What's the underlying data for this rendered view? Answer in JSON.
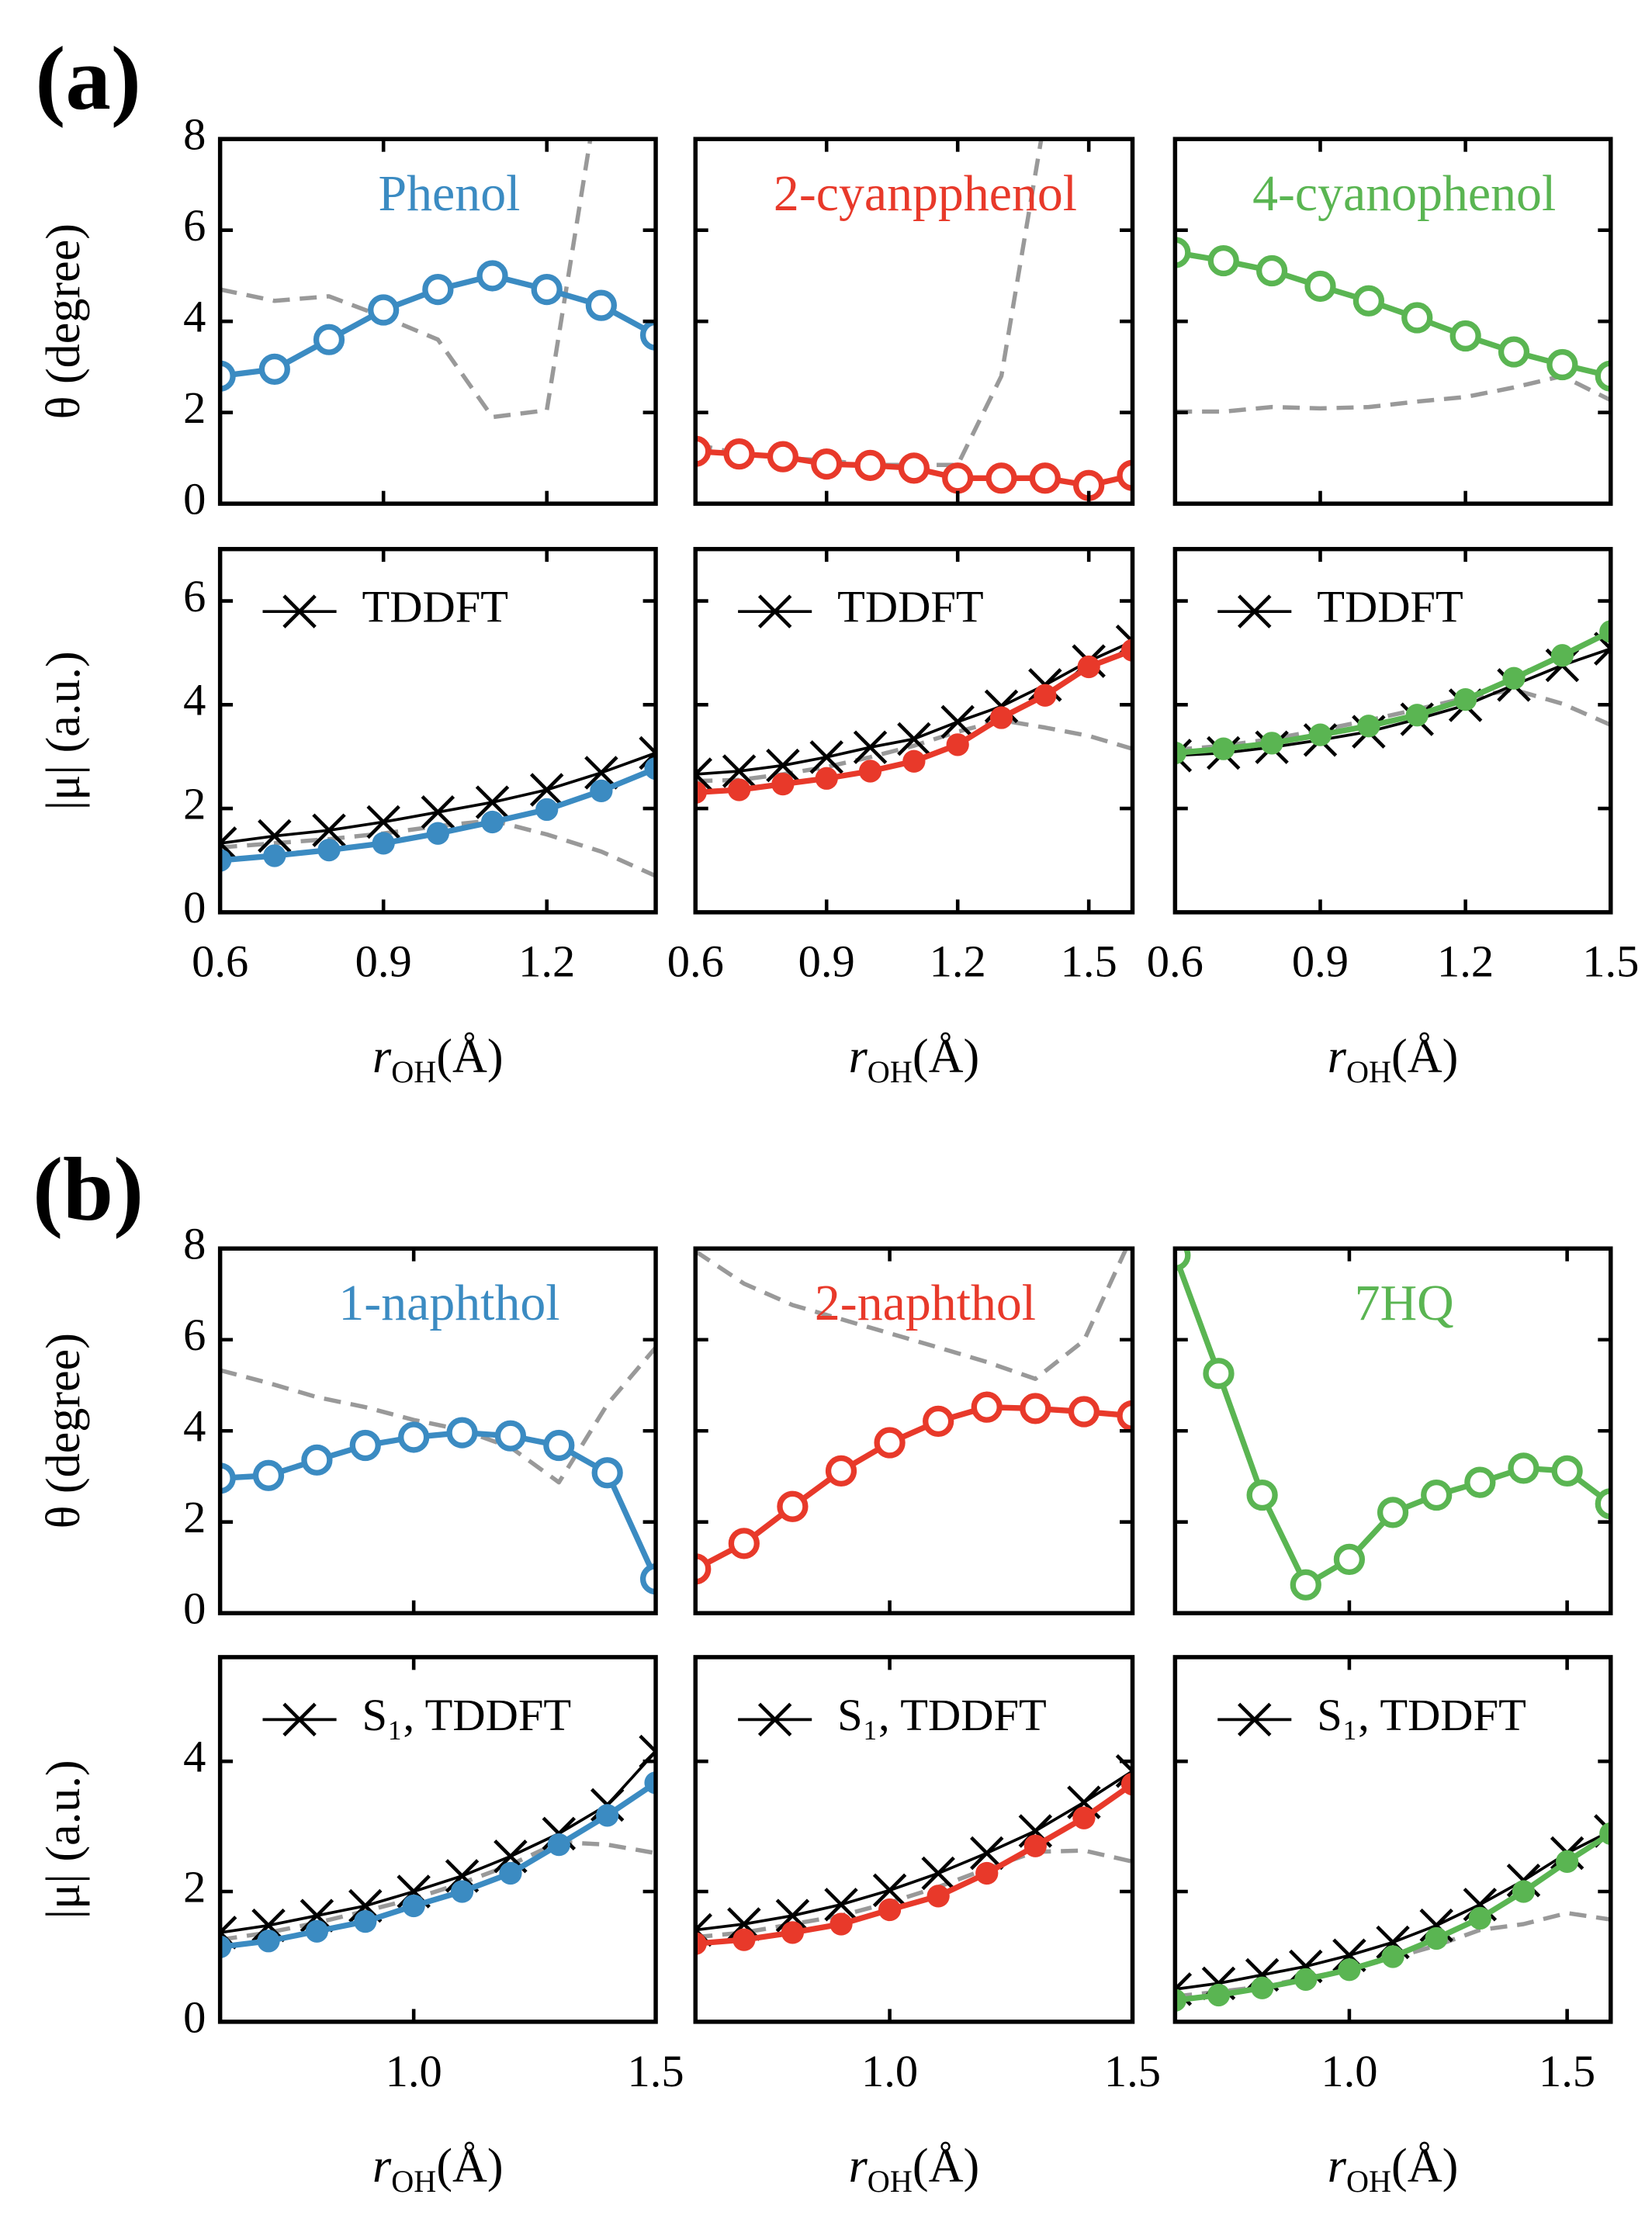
{
  "figure_labels": [
    "(a)",
    "(b)"
  ],
  "chart_data": [
    {
      "type": "line",
      "title": "Phenol",
      "ylabel": "θ (degree)",
      "x": [
        0.6,
        0.7,
        0.8,
        0.9,
        1.0,
        1.1,
        1.2,
        1.3,
        1.4
      ],
      "xlim": [
        0.6,
        1.4
      ],
      "xticks": [
        0.6,
        0.9,
        1.2
      ],
      "ylim": [
        0,
        8
      ],
      "yticks": [
        0,
        2,
        4,
        6,
        8
      ],
      "series": [
        {
          "color": "#999999",
          "linestyle": "dashed",
          "values": [
            4.7,
            4.45,
            4.55,
            4.1,
            3.6,
            1.9,
            2.05,
            9.5,
            null
          ]
        },
        {
          "color": "#3b8bc2",
          "marker": "open",
          "values": [
            2.8,
            2.95,
            3.6,
            4.25,
            4.7,
            5.0,
            4.7,
            4.35,
            3.7
          ]
        }
      ]
    },
    {
      "type": "line",
      "title": "2-cyanpphenol",
      "x": [
        0.6,
        0.7,
        0.8,
        0.9,
        1.0,
        1.1,
        1.2,
        1.3,
        1.4,
        1.5,
        1.6
      ],
      "xlim": [
        0.6,
        1.6
      ],
      "xticks": [
        0.6,
        0.9,
        1.2,
        1.5
      ],
      "ylim": [
        0,
        8
      ],
      "yticks": [
        0,
        2,
        4,
        6,
        8
      ],
      "series": [
        {
          "color": "#999999",
          "linestyle": "dashed",
          "values": [
            1.3,
            1.1,
            1.0,
            0.95,
            0.85,
            0.85,
            0.85,
            2.8,
            8.5,
            null,
            null
          ]
        },
        {
          "color": "#e8392a",
          "marker": "open",
          "values": [
            1.15,
            1.09,
            1.03,
            0.87,
            0.84,
            0.78,
            0.56,
            0.56,
            0.56,
            0.4,
            0.62
          ]
        }
      ]
    },
    {
      "type": "line",
      "title": "4-cyanophenol",
      "x": [
        0.6,
        0.7,
        0.8,
        0.9,
        1.0,
        1.1,
        1.2,
        1.3,
        1.4,
        1.5
      ],
      "xlim": [
        0.6,
        1.5
      ],
      "xticks": [
        0.6,
        0.9,
        1.2,
        1.5
      ],
      "ylim": [
        0,
        8
      ],
      "yticks": [
        0,
        2,
        4,
        6,
        8
      ],
      "series": [
        {
          "color": "#999999",
          "linestyle": "dashed",
          "values": [
            2.02,
            2.02,
            2.12,
            2.09,
            2.12,
            2.24,
            2.34,
            2.55,
            2.8,
            2.27
          ]
        },
        {
          "color": "#5ab552",
          "marker": "open",
          "values": [
            5.51,
            5.33,
            5.11,
            4.77,
            4.45,
            4.08,
            3.68,
            3.33,
            3.05,
            2.8
          ]
        }
      ]
    },
    {
      "type": "line",
      "ylabel": "|μ| (a.u.)",
      "xlabel": {
        "symbol": "r",
        "sub": "OH",
        "unit": "(Å)"
      },
      "x": [
        0.6,
        0.7,
        0.8,
        0.9,
        1.0,
        1.1,
        1.2,
        1.3,
        1.4
      ],
      "xlim": [
        0.6,
        1.4
      ],
      "xticks": [
        0.6,
        0.9,
        1.2
      ],
      "ylim": [
        0,
        7
      ],
      "yticks": [
        0,
        2,
        4,
        6
      ],
      "series": [
        {
          "color": "#999999",
          "linestyle": "dashed",
          "values": [
            1.25,
            1.33,
            1.41,
            1.52,
            1.66,
            1.77,
            1.5,
            1.17,
            0.7
          ]
        },
        {
          "name": "TDDFT",
          "color": "#000000",
          "marker": "x",
          "values": [
            1.33,
            1.47,
            1.58,
            1.74,
            1.93,
            2.12,
            2.36,
            2.69,
            3.07
          ]
        },
        {
          "color": "#3b8bc2",
          "marker": "filled",
          "values": [
            1.0,
            1.09,
            1.2,
            1.33,
            1.52,
            1.74,
            1.98,
            2.34,
            2.77
          ]
        }
      ]
    },
    {
      "type": "line",
      "xlabel": {
        "symbol": "r",
        "sub": "OH",
        "unit": "(Å)"
      },
      "x": [
        0.6,
        0.7,
        0.8,
        0.9,
        1.0,
        1.1,
        1.2,
        1.3,
        1.4,
        1.5,
        1.6
      ],
      "xlim": [
        0.6,
        1.6
      ],
      "xticks": [
        0.6,
        0.9,
        1.2,
        1.5
      ],
      "ylim": [
        0,
        7
      ],
      "yticks": [
        0,
        2,
        4,
        6
      ],
      "series": [
        {
          "color": "#999999",
          "linestyle": "dashed",
          "values": [
            2.53,
            2.55,
            2.66,
            2.8,
            2.99,
            3.21,
            3.48,
            3.7,
            3.56,
            3.4,
            3.15
          ]
        },
        {
          "name": "TDDFT",
          "color": "#000000",
          "marker": "x",
          "values": [
            2.66,
            2.72,
            2.83,
            2.99,
            3.18,
            3.34,
            3.67,
            3.97,
            4.38,
            4.84,
            5.22
          ]
        },
        {
          "color": "#e8392a",
          "marker": "filled",
          "values": [
            2.31,
            2.36,
            2.47,
            2.58,
            2.72,
            2.91,
            3.23,
            3.75,
            4.18,
            4.73,
            5.05
          ]
        }
      ]
    },
    {
      "type": "line",
      "xlabel": {
        "symbol": "r",
        "sub": "OH",
        "unit": "(Å)"
      },
      "x": [
        0.6,
        0.7,
        0.8,
        0.9,
        1.0,
        1.1,
        1.2,
        1.3,
        1.4,
        1.5
      ],
      "xlim": [
        0.6,
        1.5
      ],
      "xticks": [
        0.6,
        0.9,
        1.2,
        1.5
      ],
      "ylim": [
        0,
        7
      ],
      "yticks": [
        0,
        2,
        4,
        6
      ],
      "series": [
        {
          "color": "#999999",
          "linestyle": "dashed",
          "values": [
            3.13,
            3.21,
            3.34,
            3.51,
            3.7,
            3.91,
            4.13,
            4.29,
            4.02,
            3.61
          ]
        },
        {
          "name": "TDDFT",
          "color": "#000000",
          "marker": "x",
          "values": [
            3.02,
            3.07,
            3.18,
            3.32,
            3.48,
            3.72,
            3.99,
            4.38,
            4.76,
            5.08
          ]
        },
        {
          "color": "#5ab552",
          "marker": "filled",
          "values": [
            3.07,
            3.15,
            3.26,
            3.42,
            3.59,
            3.8,
            4.1,
            4.51,
            4.95,
            5.41
          ]
        }
      ]
    },
    {
      "type": "line",
      "title": "1-naphthol",
      "ylabel": "θ (degree)",
      "x": [
        0.6,
        0.7,
        0.8,
        0.9,
        1.0,
        1.1,
        1.2,
        1.3,
        1.4,
        1.5
      ],
      "xlim": [
        0.6,
        1.5
      ],
      "xticks": [
        {
          "value": 1,
          "label": "1.0"
        },
        1.5
      ],
      "ylim": [
        0,
        8
      ],
      "yticks": [
        0,
        2,
        4,
        6,
        8
      ],
      "series": [
        {
          "color": "#999999",
          "linestyle": "dashed",
          "values": [
            5.33,
            5.05,
            4.74,
            4.52,
            4.24,
            4.02,
            3.64,
            2.87,
            4.58,
            5.83
          ]
        },
        {
          "color": "#3b8bc2",
          "marker": "open",
          "values": [
            2.96,
            3.02,
            3.36,
            3.68,
            3.86,
            3.96,
            3.89,
            3.68,
            3.08,
            0.75
          ]
        }
      ]
    },
    {
      "type": "line",
      "title": "2-naphthol",
      "x": [
        0.6,
        0.7,
        0.8,
        0.9,
        1.0,
        1.1,
        1.2,
        1.3,
        1.4,
        1.5
      ],
      "xlim": [
        0.6,
        1.5
      ],
      "xticks": [
        {
          "value": 1,
          "label": "1.0"
        },
        1.5
      ],
      "ylim": [
        0,
        8
      ],
      "yticks": [
        0,
        2,
        4,
        6,
        8
      ],
      "series": [
        {
          "color": "#999999",
          "linestyle": "dashed",
          "values": [
            7.94,
            7.23,
            6.76,
            6.45,
            6.14,
            5.83,
            5.51,
            5.14,
            5.98,
            8.3
          ]
        },
        {
          "color": "#e8392a",
          "marker": "open",
          "values": [
            0.97,
            1.53,
            2.34,
            3.12,
            3.74,
            4.21,
            4.52,
            4.49,
            4.42,
            4.33
          ]
        }
      ]
    },
    {
      "type": "line",
      "title": "7HQ",
      "x": [
        0.6,
        0.7,
        0.8,
        0.9,
        1.0,
        1.1,
        1.2,
        1.3,
        1.4,
        1.5,
        1.6
      ],
      "xlim": [
        0.6,
        1.6
      ],
      "xticks": [
        {
          "value": 1,
          "label": "1.0"
        },
        1.5
      ],
      "ylim": [
        0,
        8
      ],
      "yticks": [
        0,
        2,
        4,
        6,
        8
      ],
      "series": [
        {
          "color": "#5ab552",
          "marker": "open",
          "values": [
            7.85,
            5.26,
            2.59,
            0.62,
            1.18,
            2.21,
            2.59,
            2.87,
            3.18,
            3.12,
            2.4
          ]
        }
      ]
    },
    {
      "type": "line",
      "ylabel": "|μ| (a.u.)",
      "xlabel": {
        "symbol": "r",
        "sub": "OH",
        "unit": "(Å)"
      },
      "x": [
        0.6,
        0.7,
        0.8,
        0.9,
        1.0,
        1.1,
        1.2,
        1.3,
        1.4,
        1.5
      ],
      "xlim": [
        0.6,
        1.5
      ],
      "xticks": [
        {
          "value": 1,
          "label": "1.0"
        },
        1.5
      ],
      "ylim": [
        0,
        5.6
      ],
      "yticks": [
        0,
        2,
        4
      ],
      "series": [
        {
          "color": "#999999",
          "linestyle": "dashed",
          "values": [
            1.26,
            1.37,
            1.52,
            1.7,
            1.89,
            2.13,
            2.41,
            2.76,
            2.72,
            2.59
          ]
        },
        {
          "name": "S₁, TDDFT",
          "color": "#000000",
          "marker": "x",
          "values": [
            1.37,
            1.48,
            1.63,
            1.78,
            2.0,
            2.24,
            2.54,
            2.89,
            3.33,
            4.15
          ]
        },
        {
          "color": "#3b8bc2",
          "marker": "filled",
          "values": [
            1.15,
            1.24,
            1.39,
            1.54,
            1.78,
            2.0,
            2.28,
            2.72,
            3.17,
            3.67
          ]
        }
      ]
    },
    {
      "type": "line",
      "xlabel": {
        "symbol": "r",
        "sub": "OH",
        "unit": "(Å)"
      },
      "x": [
        0.6,
        0.7,
        0.8,
        0.9,
        1.0,
        1.1,
        1.2,
        1.3,
        1.4,
        1.5
      ],
      "xlim": [
        0.6,
        1.5
      ],
      "xticks": [
        {
          "value": 1,
          "label": "1.0"
        },
        1.5
      ],
      "ylim": [
        0,
        5.6
      ],
      "yticks": [
        0,
        2,
        4
      ],
      "series": [
        {
          "color": "#999999",
          "linestyle": "dashed",
          "values": [
            1.3,
            1.37,
            1.5,
            1.63,
            1.83,
            2.07,
            2.35,
            2.61,
            2.63,
            2.46
          ]
        },
        {
          "name": "S₁, TDDFT",
          "color": "#000000",
          "marker": "x",
          "values": [
            1.41,
            1.5,
            1.63,
            1.8,
            2.02,
            2.28,
            2.59,
            2.93,
            3.37,
            3.85
          ]
        },
        {
          "color": "#e8392a",
          "marker": "filled",
          "values": [
            1.2,
            1.26,
            1.37,
            1.5,
            1.72,
            1.93,
            2.28,
            2.7,
            3.13,
            3.65
          ]
        }
      ]
    },
    {
      "type": "line",
      "xlabel": {
        "symbol": "r",
        "sub": "OH",
        "unit": "(Å)"
      },
      "x": [
        0.6,
        0.7,
        0.8,
        0.9,
        1.0,
        1.1,
        1.2,
        1.3,
        1.4,
        1.5,
        1.6
      ],
      "xlim": [
        0.6,
        1.6
      ],
      "xticks": [
        {
          "value": 1,
          "label": "1.0"
        },
        1.5
      ],
      "ylim": [
        0,
        5.6
      ],
      "yticks": [
        0,
        2,
        4
      ],
      "series": [
        {
          "color": "#999999",
          "linestyle": "dashed",
          "values": [
            0.39,
            0.46,
            0.54,
            0.67,
            0.8,
            0.98,
            1.17,
            1.41,
            1.5,
            1.67,
            1.57
          ]
        },
        {
          "name": "S₁, TDDFT",
          "color": "#000000",
          "marker": "x",
          "values": [
            0.5,
            0.59,
            0.72,
            0.85,
            1.02,
            1.22,
            1.48,
            1.8,
            2.17,
            2.59,
            2.93
          ]
        },
        {
          "color": "#5ab552",
          "marker": "filled",
          "values": [
            0.33,
            0.41,
            0.52,
            0.65,
            0.8,
            1.0,
            1.28,
            1.59,
            2.0,
            2.46,
            2.89
          ]
        }
      ]
    }
  ]
}
